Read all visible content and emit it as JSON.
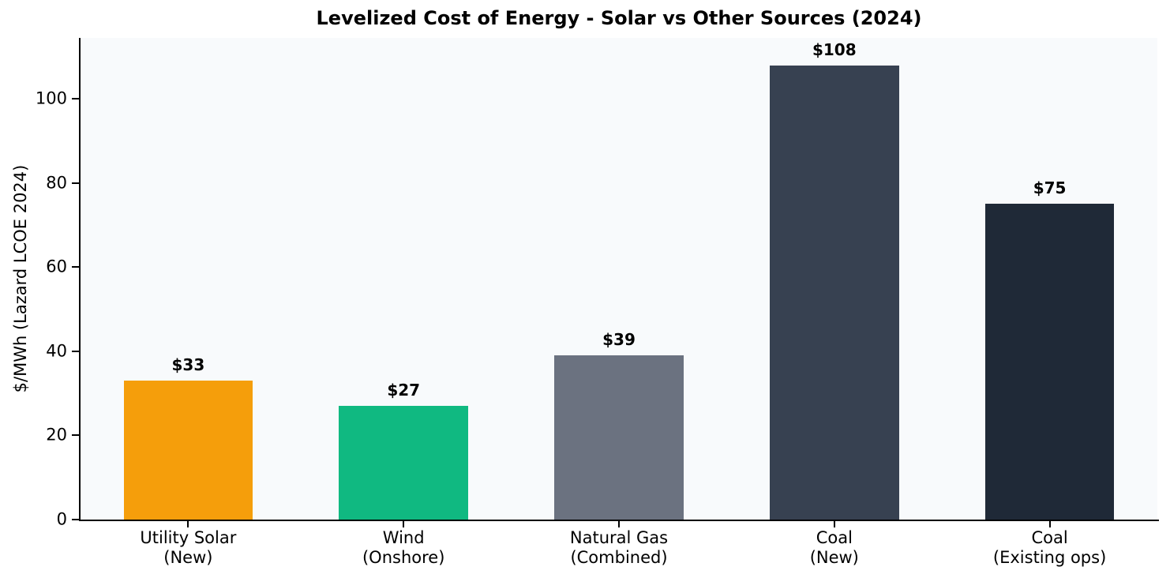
{
  "chart_data": {
    "type": "bar",
    "title": "Levelized Cost of Energy - Solar vs Other Sources (2024)",
    "ylabel": "$/MWh (Lazard LCOE 2024)",
    "xlabel": "",
    "categories": [
      [
        "Utility Solar",
        "(New)"
      ],
      [
        "Wind",
        "(Onshore)"
      ],
      [
        "Natural Gas",
        "(Combined)"
      ],
      [
        "Coal",
        "(New)"
      ],
      [
        "Coal",
        "(Existing ops)"
      ]
    ],
    "values": [
      33,
      27,
      39,
      108,
      75
    ],
    "bar_labels": [
      "$33",
      "$27",
      "$39",
      "$108",
      "$75"
    ],
    "bar_colors": [
      "#F59E0B",
      "#10B981",
      "#6B7280",
      "#374151",
      "#1F2937"
    ],
    "yticks": [
      0,
      20,
      40,
      60,
      80,
      100
    ],
    "ylim": [
      0,
      114.5
    ],
    "grid": false,
    "legend": false,
    "bar_width_fraction": 0.6,
    "plot_background": "#F8FAFC",
    "axis_color": "#000000",
    "text_color": "#000000"
  }
}
